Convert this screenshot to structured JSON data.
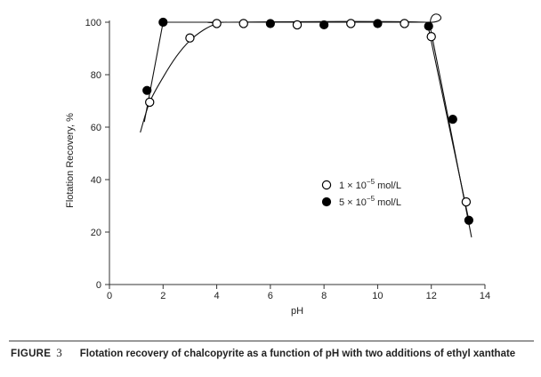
{
  "chart_data": {
    "type": "scatter",
    "title": "",
    "xlabel": "pH",
    "ylabel": "Flotation Recovery, %",
    "xlim": [
      0,
      14
    ],
    "ylim": [
      0,
      100
    ],
    "xticks": [
      0,
      2,
      4,
      6,
      8,
      10,
      12,
      14
    ],
    "yticks": [
      0,
      20,
      40,
      60,
      80,
      100
    ],
    "grid": false,
    "legend_placement": "center-right",
    "series": [
      {
        "name": "1 × 10",
        "name_exponent": "−5",
        "name_unit": " mol/L",
        "marker": "open-circle",
        "points": [
          {
            "x": 1.5,
            "y": 69.5
          },
          {
            "x": 3.0,
            "y": 94
          },
          {
            "x": 4.0,
            "y": 99.5
          },
          {
            "x": 5.0,
            "y": 99.5
          },
          {
            "x": 7.0,
            "y": 99
          },
          {
            "x": 9.0,
            "y": 99.5
          },
          {
            "x": 11.0,
            "y": 99.5
          },
          {
            "x": 12.0,
            "y": 94.5
          },
          {
            "x": 13.3,
            "y": 31.5
          }
        ],
        "fit_curve": [
          [
            1.15,
            58
          ],
          [
            1.5,
            69.5
          ],
          [
            2.0,
            79
          ],
          [
            2.5,
            87
          ],
          [
            3.0,
            93
          ],
          [
            3.5,
            97
          ],
          [
            4.0,
            99.5
          ],
          [
            4.3,
            100
          ],
          [
            11.8,
            100
          ],
          [
            12.0,
            96
          ],
          [
            13.5,
            18
          ]
        ]
      },
      {
        "name": "5 × 10",
        "name_exponent": "−5",
        "name_unit": " mol/L",
        "marker": "filled-circle",
        "points": [
          {
            "x": 1.4,
            "y": 74
          },
          {
            "x": 2.0,
            "y": 100
          },
          {
            "x": 6.0,
            "y": 99.5
          },
          {
            "x": 8.0,
            "y": 99
          },
          {
            "x": 10.0,
            "y": 99.5
          },
          {
            "x": 11.9,
            "y": 98.5
          },
          {
            "x": 12.8,
            "y": 63
          },
          {
            "x": 13.4,
            "y": 24.5
          }
        ],
        "fit_curve": [
          [
            1.3,
            62
          ],
          [
            2.0,
            100
          ],
          [
            11.85,
            100
          ],
          [
            13.4,
            24.5
          ]
        ]
      }
    ]
  },
  "caption": {
    "figure_label": "FIGURE",
    "figure_number": "3",
    "text": "Flotation recovery of chalcopyrite as a function of pH with two additions of ethyl xanthate"
  }
}
